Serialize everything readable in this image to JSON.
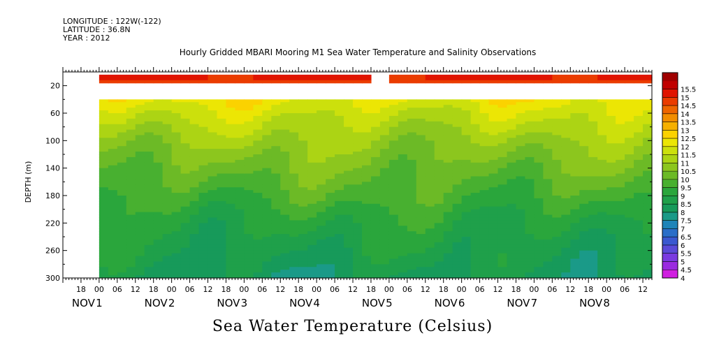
{
  "header": {
    "longitude": "LONGITUDE : 122W(-122)",
    "latitude": "LATITUDE : 36.8N",
    "year": "YEAR : 2012"
  },
  "chart_data": {
    "type": "heatmap",
    "title": "Hourly Gridded MBARI Mooring M1 Sea Water Temperature and Salinity Observations",
    "bottom_title": "Sea Water Temperature (Celsius)",
    "ylabel": "DEPTH (m)",
    "ylim": [
      300,
      0
    ],
    "y_tick_labels": [
      "20",
      "60",
      "100",
      "140",
      "180",
      "220",
      "260",
      "300"
    ],
    "y_ticks": [
      20,
      60,
      100,
      140,
      180,
      220,
      260,
      300
    ],
    "hour_tick_labels": [
      "18",
      "00",
      "06",
      "12",
      "18",
      "00",
      "06",
      "12",
      "18",
      "00",
      "06",
      "12",
      "18",
      "00",
      "06",
      "12",
      "18",
      "00",
      "06",
      "12",
      "18",
      "00",
      "06",
      "12",
      "18",
      "00",
      "06",
      "12",
      "18",
      "00",
      "06",
      "12"
    ],
    "day_labels": [
      {
        "month": "NOV",
        "day": "1"
      },
      {
        "month": "NOV",
        "day": "2"
      },
      {
        "month": "NOV",
        "day": "3"
      },
      {
        "month": "NOV",
        "day": "4"
      },
      {
        "month": "NOV",
        "day": "5"
      },
      {
        "month": "NOV",
        "day": "6"
      },
      {
        "month": "NOV",
        "day": "7"
      },
      {
        "month": "NOV",
        "day": "8"
      }
    ],
    "x_start": "2012-10-31 12:00",
    "x_end": "2012-11-08 15:00",
    "data_start": "2012-11-01 00:00",
    "colorbar": {
      "levels": [
        "4",
        "4.5",
        "5",
        "5.5",
        "6",
        "6.5",
        "7",
        "7.5",
        "8",
        "8.5",
        "9",
        "9.5",
        "10",
        "10.5",
        "11",
        "11.5",
        "12",
        "12.5",
        "13",
        "13.5",
        "14",
        "14.5",
        "15",
        "15.5"
      ],
      "colors": [
        "#d020e0",
        "#9a2ae0",
        "#7a3ae0",
        "#5a4ad8",
        "#3a58d0",
        "#2a6ec8",
        "#1e84b8",
        "#1a9a88",
        "#179a5a",
        "#1fa04a",
        "#2aa63c",
        "#48b030",
        "#6cba26",
        "#8cc61e",
        "#acd414",
        "#cce00c",
        "#ece604",
        "#fbd200",
        "#f6b000",
        "#f28e00",
        "#ee6600",
        "#ea3c00",
        "#e01400",
        "#c00000",
        "#a00000"
      ]
    },
    "depth_profile": [
      {
        "depth": 10,
        "temperature": 14.6
      },
      {
        "depth": 40,
        "temperature": 11.7
      },
      {
        "depth": 60,
        "temperature": 11.2
      },
      {
        "depth": 80,
        "temperature": 10.8
      },
      {
        "depth": 100,
        "temperature": 10.4
      },
      {
        "depth": 120,
        "temperature": 10.1
      },
      {
        "depth": 140,
        "temperature": 9.8
      },
      {
        "depth": 160,
        "temperature": 9.5
      },
      {
        "depth": 180,
        "temperature": 9.2
      },
      {
        "depth": 200,
        "temperature": 8.9
      },
      {
        "depth": 220,
        "temperature": 8.6
      },
      {
        "depth": 240,
        "temperature": 8.4
      },
      {
        "depth": 260,
        "temperature": 8.2
      },
      {
        "depth": 280,
        "temperature": 8.0
      },
      {
        "depth": 300,
        "temperature": 7.8
      }
    ],
    "no_data_depth_range": [
      14,
      40
    ],
    "surface_gap": [
      "2012-11-04 18:00",
      "2012-11-05 00:00"
    ]
  }
}
